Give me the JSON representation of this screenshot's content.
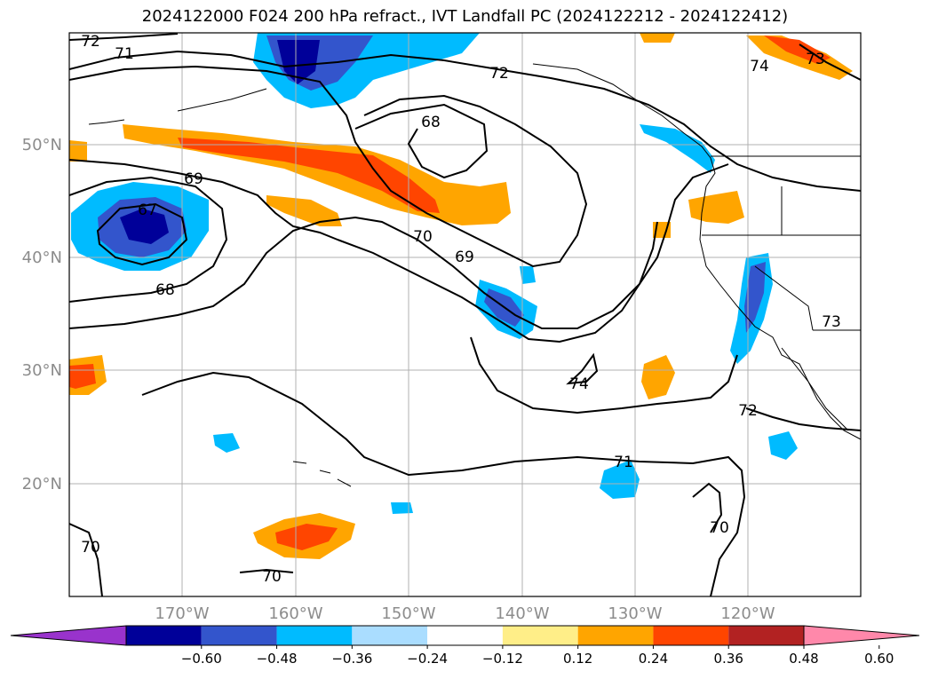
{
  "title": "2024122000 F024 200 hPa refract., IVT Landfall PC (2024122212 - 2024122412)",
  "axes": {
    "lat_labels": [
      "50°N",
      "40°N",
      "30°N",
      "20°N"
    ],
    "lon_labels": [
      "170°W",
      "160°W",
      "150°W",
      "140°W",
      "130°W",
      "120°W"
    ]
  },
  "colorbar": {
    "ticks": [
      "−0.60",
      "−0.48",
      "−0.36",
      "−0.24",
      "−0.12",
      "0.12",
      "0.24",
      "0.36",
      "0.48",
      "0.60"
    ],
    "colors": [
      "#9933cc",
      "#000099",
      "#3355cc",
      "#00bbff",
      "#aaddff",
      "#ffffff",
      "#ffee88",
      "#ffa500",
      "#ff4500",
      "#b22222",
      "#ff88aa"
    ]
  },
  "contour_labels": [
    {
      "text": "72"
    },
    {
      "text": "71"
    },
    {
      "text": "72"
    },
    {
      "text": "74"
    },
    {
      "text": "73"
    },
    {
      "text": "68"
    },
    {
      "text": "69"
    },
    {
      "text": "67"
    },
    {
      "text": "70"
    },
    {
      "text": "69"
    },
    {
      "text": "68"
    },
    {
      "text": "74"
    },
    {
      "text": "72"
    },
    {
      "text": "73"
    },
    {
      "text": "71"
    },
    {
      "text": "70"
    },
    {
      "text": "70"
    },
    {
      "text": "70"
    }
  ]
}
